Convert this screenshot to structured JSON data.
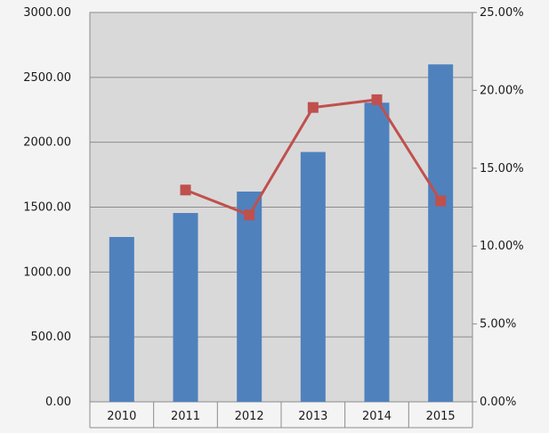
{
  "chart_data": {
    "type": "bar",
    "categories": [
      "2010",
      "2011",
      "2012",
      "2013",
      "2014",
      "2015"
    ],
    "series": [
      {
        "type": "bar",
        "axis": "left",
        "values": [
          1270,
          1455,
          1620,
          1925,
          2305,
          2600
        ]
      },
      {
        "type": "line",
        "axis": "right",
        "values": [
          null,
          13.6,
          12.0,
          18.9,
          19.4,
          12.9
        ]
      }
    ],
    "left_axis": {
      "ylim": [
        0,
        3000
      ],
      "ticks": [
        0,
        500,
        1000,
        1500,
        2000,
        2500,
        3000
      ],
      "tick_labels": [
        "0.00",
        "500.00",
        "1000.00",
        "1500.00",
        "2000.00",
        "2500.00",
        "3000.00"
      ]
    },
    "right_axis": {
      "ylim": [
        0,
        25
      ],
      "ticks": [
        0,
        5,
        10,
        15,
        20,
        25
      ],
      "tick_labels": [
        "0.00%",
        "5.00%",
        "10.00%",
        "15.00%",
        "20.00%",
        "25.00%"
      ]
    },
    "grid": true,
    "legend": "none",
    "colors": {
      "bar": "#4f81bd",
      "line": "#c0504d",
      "plot_bg": "#d9d9d9",
      "page_bg": "#f4f4f4",
      "grid": "#8c8c8c"
    }
  }
}
